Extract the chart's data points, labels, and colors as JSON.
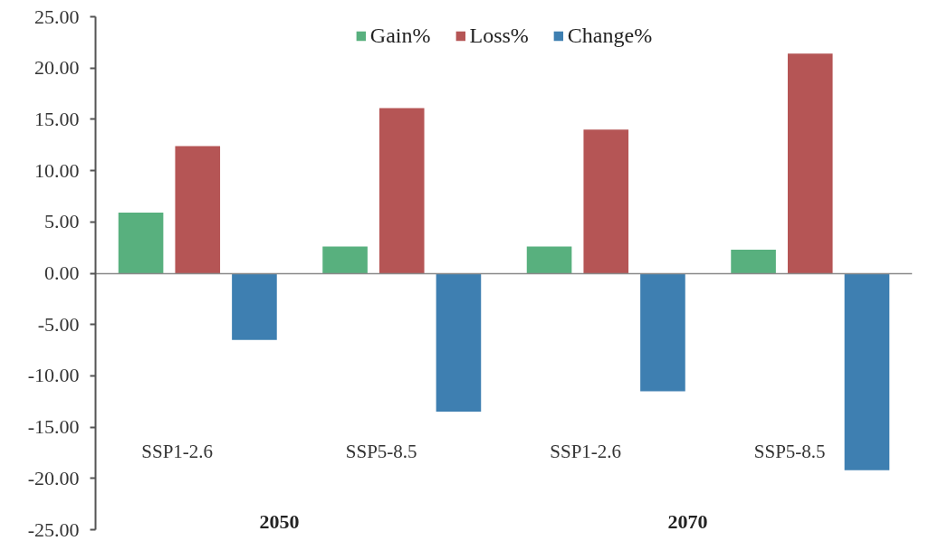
{
  "chart_data": {
    "type": "bar",
    "categories": [
      "SSP1-2.6",
      "SSP5-8.5",
      "SSP1-2.6",
      "SSP5-8.5"
    ],
    "series": [
      {
        "name": "Gain%",
        "color": "#58b07e",
        "values": [
          5.9,
          2.6,
          2.6,
          2.3
        ]
      },
      {
        "name": "Loss%",
        "color": "#b55555",
        "values": [
          12.4,
          16.1,
          14.0,
          21.4
        ]
      },
      {
        "name": "Change%",
        "color": "#3e7fb1",
        "values": [
          -6.5,
          -13.5,
          -11.5,
          -19.2
        ]
      }
    ],
    "ylim": [
      -25,
      25
    ],
    "yticks": [
      {
        "value": -25,
        "label": "-25.00"
      },
      {
        "value": -20,
        "label": "-20.00"
      },
      {
        "value": -15,
        "label": "-15.00"
      },
      {
        "value": -10,
        "label": "-10.00"
      },
      {
        "value": -5,
        "label": "-5.00"
      },
      {
        "value": 0,
        "label": "0.00"
      },
      {
        "value": 5,
        "label": "5.00"
      },
      {
        "value": 10,
        "label": "10.00"
      },
      {
        "value": 15,
        "label": "15.00"
      },
      {
        "value": 20,
        "label": "20.00"
      },
      {
        "value": 25,
        "label": "25.00"
      }
    ],
    "legend": "top",
    "annotations": [
      "2050",
      "2070"
    ]
  }
}
